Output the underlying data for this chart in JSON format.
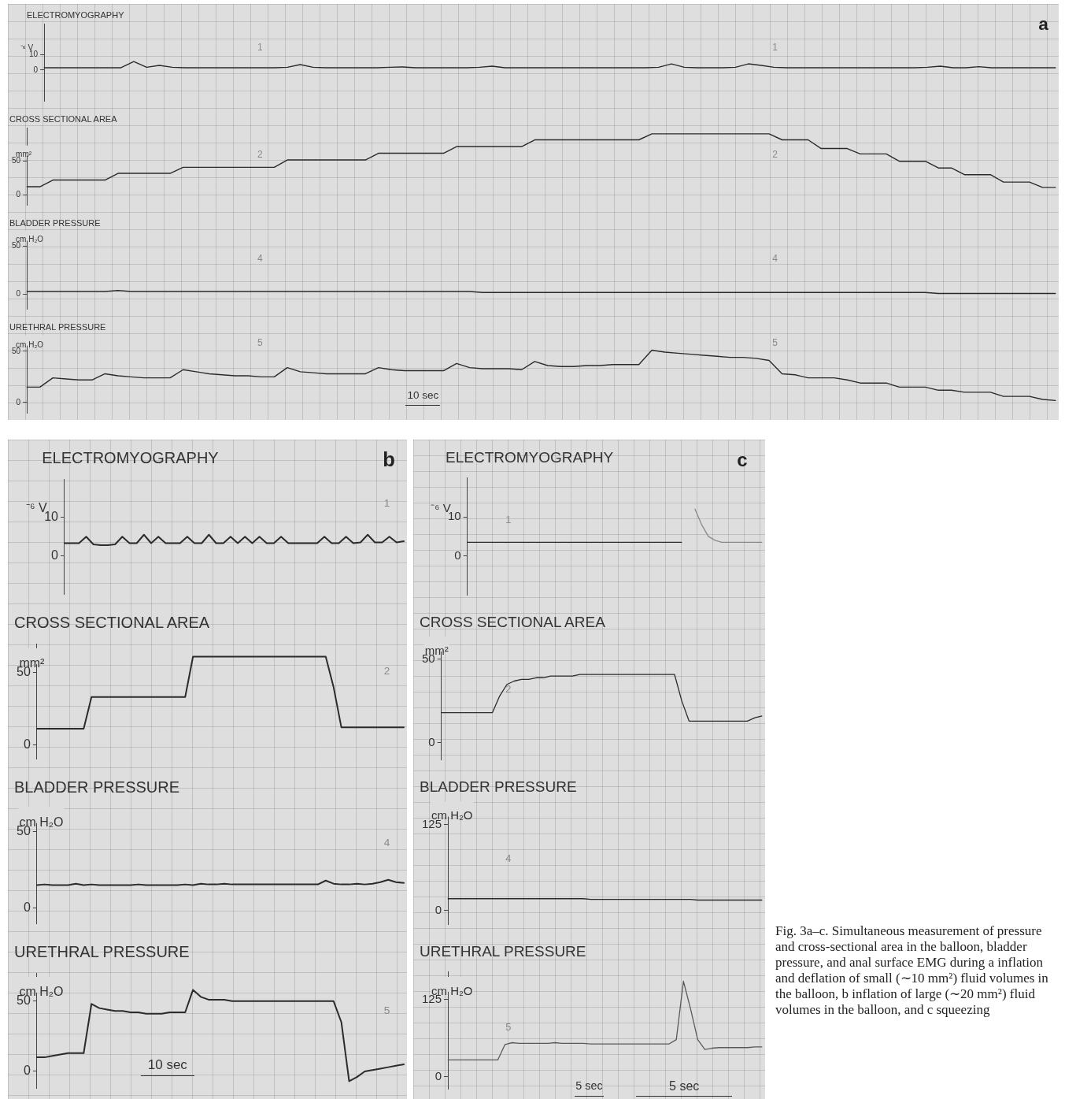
{
  "chart_data": [
    {
      "type": "line",
      "title": "ELECTROMYOGRAPHY",
      "categories": [
        null,
        null,
        null,
        null,
        null,
        null,
        null,
        null,
        null,
        null,
        null,
        null,
        null,
        null,
        null,
        null,
        null,
        null,
        null,
        null,
        null,
        null,
        null,
        null,
        null,
        null,
        null,
        null,
        null,
        null,
        null,
        null,
        null,
        null,
        null,
        null,
        null,
        null,
        null,
        null,
        null,
        null,
        null,
        null,
        null,
        null,
        null,
        null,
        null,
        null,
        null,
        null,
        null,
        null,
        null,
        null,
        null,
        null,
        null,
        null,
        null,
        null,
        null,
        null,
        null,
        null,
        null,
        null,
        null,
        null,
        null,
        null,
        null,
        null,
        null,
        null,
        null,
        null,
        null,
        null
      ],
      "values": [
        1.5,
        1.5,
        1.5,
        1.5,
        1.5,
        1.5,
        1.5,
        5.5,
        1.8,
        3,
        1.8,
        1.5,
        1.5,
        1.5,
        1.5,
        1.5,
        1.5,
        1.5,
        1.5,
        1.8,
        3.5,
        1.8,
        1.5,
        1.5,
        1.5,
        1.5,
        1.5,
        1.8,
        2,
        1.5,
        1.5,
        1.5,
        1.5,
        1.5,
        1.8,
        2.5,
        1.5,
        1.5,
        1.5,
        1.5,
        1.5,
        1.5,
        1.5,
        1.5,
        1.5,
        1.5,
        1.5,
        1.5,
        1.8,
        4,
        1.8,
        1.5,
        1.5,
        1.5,
        1.8,
        4,
        3,
        1.8,
        1.5,
        1.5,
        1.5,
        1.5,
        1.5,
        1.5,
        1.5,
        1.5,
        1.5,
        1.5,
        1.5,
        1.8,
        2.5,
        1.5,
        1.5,
        2.2,
        1.5,
        1.5,
        1.5,
        1.5,
        1.5,
        1.5
      ],
      "color": "#2b2b2b",
      "ylim": [
        -20,
        30
      ],
      "yticks": [
        0,
        10
      ],
      "ylabel": "⁻⁶ V",
      "tick_labels": "y",
      "annotations": [
        "a",
        "1",
        "1"
      ]
    },
    {
      "type": "line",
      "title": "CROSS SECTIONAL AREA",
      "ylabel": "mm²",
      "categories": [
        null,
        null,
        null,
        null,
        null,
        null,
        null,
        null,
        null,
        null,
        null,
        null,
        null,
        null,
        null,
        null,
        null,
        null,
        null,
        null,
        null,
        null,
        null,
        null,
        null,
        null,
        null,
        null,
        null,
        null,
        null,
        null,
        null,
        null,
        null,
        null,
        null,
        null,
        null,
        null,
        null,
        null,
        null,
        null,
        null,
        null,
        null,
        null,
        null,
        null,
        null,
        null,
        null,
        null,
        null,
        null,
        null,
        null,
        null,
        null,
        null,
        null,
        null,
        null,
        null,
        null,
        null,
        null,
        null,
        null,
        null,
        null,
        null,
        null,
        null,
        null,
        null,
        null,
        null,
        null
      ],
      "values": [
        12,
        12,
        22,
        22,
        22,
        22,
        22,
        32,
        32,
        32,
        32,
        32,
        41,
        41,
        41,
        41,
        41,
        41,
        41,
        41,
        52,
        52,
        52,
        52,
        52,
        52,
        52,
        62,
        62,
        62,
        62,
        62,
        62,
        72,
        72,
        72,
        72,
        72,
        72,
        82,
        82,
        82,
        82,
        82,
        82,
        82,
        82,
        82,
        91,
        91,
        91,
        91,
        91,
        91,
        91,
        91,
        91,
        91,
        82,
        82,
        82,
        69,
        69,
        69,
        61,
        61,
        61,
        50,
        50,
        50,
        40,
        40,
        30,
        30,
        30,
        19,
        19,
        19,
        11,
        11
      ],
      "color": "#2b2b2b",
      "ylim": [
        -15,
        100
      ],
      "yticks": [
        0,
        50
      ],
      "tick_labels": "y",
      "annotations": [
        "2",
        "2"
      ]
    },
    {
      "type": "line",
      "title": "BLADDER PRESSURE",
      "ylabel": "cm H₂O",
      "categories": [
        null,
        null,
        null,
        null,
        null,
        null,
        null,
        null,
        null,
        null,
        null,
        null,
        null,
        null,
        null,
        null,
        null,
        null,
        null,
        null,
        null,
        null,
        null,
        null,
        null,
        null,
        null,
        null,
        null,
        null,
        null,
        null,
        null,
        null,
        null,
        null,
        null,
        null,
        null,
        null,
        null,
        null,
        null,
        null,
        null,
        null,
        null,
        null,
        null,
        null,
        null,
        null,
        null,
        null,
        null,
        null,
        null,
        null,
        null,
        null,
        null,
        null,
        null,
        null,
        null,
        null,
        null,
        null,
        null,
        null,
        null,
        null,
        null,
        null,
        null,
        null,
        null,
        null,
        null,
        null
      ],
      "values": [
        3,
        3,
        3,
        3,
        3,
        3,
        3,
        4,
        3,
        3,
        3,
        3,
        3,
        3,
        3,
        3,
        3,
        3,
        3,
        3,
        3,
        3,
        3,
        3,
        3,
        3,
        3,
        3,
        3,
        3,
        3,
        3,
        3,
        3,
        3,
        2,
        2,
        2,
        2,
        2,
        2,
        2,
        2,
        2,
        2,
        2,
        2,
        2,
        2,
        2,
        2,
        2,
        2,
        2,
        2,
        2,
        2,
        2,
        2,
        2,
        2,
        2,
        2,
        2,
        2,
        2,
        2,
        2,
        2,
        2,
        1,
        1,
        1,
        1,
        1,
        1,
        1,
        1,
        1,
        1
      ],
      "color": "#2b2b2b",
      "ylim": [
        -15,
        65
      ],
      "yticks": [
        0,
        50
      ],
      "tick_labels": "y",
      "annotations": [
        "4",
        "4"
      ]
    },
    {
      "type": "line",
      "title": "URETHRAL PRESSURE",
      "ylabel": "cm H₂O",
      "categories": [
        null,
        null,
        null,
        null,
        null,
        null,
        null,
        null,
        null,
        null,
        null,
        null,
        null,
        null,
        null,
        null,
        null,
        null,
        null,
        null,
        null,
        null,
        null,
        null,
        null,
        null,
        null,
        null,
        null,
        null,
        null,
        null,
        null,
        null,
        null,
        null,
        null,
        null,
        null,
        null,
        null,
        null,
        null,
        null,
        null,
        null,
        null,
        null,
        null,
        null,
        null,
        null,
        null,
        null,
        null,
        null,
        null,
        null,
        null,
        null,
        null,
        null,
        null,
        null,
        null,
        null,
        null,
        null,
        null,
        null,
        null,
        null,
        null,
        null,
        null,
        null,
        null,
        null,
        null,
        null
      ],
      "values": [
        15,
        15,
        24,
        23,
        22,
        22,
        28,
        26,
        25,
        24,
        24,
        24,
        32,
        30,
        28,
        27,
        26,
        26,
        25,
        25,
        34,
        30,
        29,
        28,
        28,
        28,
        28,
        34,
        32,
        31,
        31,
        31,
        31,
        38,
        34,
        33,
        33,
        33,
        32,
        40,
        36,
        35,
        35,
        36,
        36,
        37,
        37,
        37,
        51,
        49,
        48,
        47,
        46,
        45,
        44,
        44,
        43,
        41,
        28,
        27,
        24,
        24,
        24,
        22,
        19,
        19,
        19,
        15,
        15,
        15,
        12,
        12,
        10,
        10,
        10,
        6,
        6,
        6,
        3,
        2
      ],
      "color": "#2b2b2b",
      "ylim": [
        -10,
        65
      ],
      "yticks": [
        0,
        50
      ],
      "tick_labels": "y",
      "annotations": [
        "5",
        "5",
        "10 sec"
      ]
    },
    {
      "type": "line",
      "title": "ELECTROMYOGRAPHY",
      "categories": [
        null,
        null,
        null,
        null,
        null,
        null,
        null,
        null,
        null,
        null,
        null,
        null,
        null,
        null,
        null,
        null,
        null,
        null,
        null,
        null,
        null,
        null,
        null,
        null,
        null,
        null,
        null,
        null,
        null,
        null,
        null,
        null,
        null,
        null,
        null,
        null,
        null,
        null,
        null,
        null,
        null,
        null,
        null,
        null,
        null,
        null,
        null,
        null
      ],
      "values": [
        3.3,
        3.3,
        3.3,
        5,
        3,
        2.8,
        2.8,
        3,
        5,
        3.3,
        3.3,
        5.5,
        3.3,
        5,
        3.3,
        3.3,
        3.3,
        5,
        3.3,
        3.3,
        5.5,
        3.3,
        3.3,
        5,
        3.3,
        5,
        3.3,
        5,
        3.3,
        3.3,
        5,
        3.3,
        3.3,
        3.3,
        3.3,
        3.3,
        5,
        3.3,
        3.3,
        5,
        3.3,
        3.5,
        5.5,
        3.5,
        3.5,
        5,
        3.5,
        3.8
      ],
      "color": "#2b2b2b",
      "ylim": [
        -10,
        20
      ],
      "yticks": [
        0,
        10
      ],
      "ylabel": "⁻⁶ V",
      "tick_labels": "y",
      "annotations": [
        "b",
        "1"
      ]
    },
    {
      "type": "line",
      "title": "CROSS SECTIONAL AREA",
      "ylabel": "mm²",
      "categories": [
        null,
        null,
        null,
        null,
        null,
        null,
        null,
        null,
        null,
        null,
        null,
        null,
        null,
        null,
        null,
        null,
        null,
        null,
        null,
        null,
        null,
        null,
        null,
        null,
        null,
        null,
        null,
        null,
        null,
        null,
        null,
        null,
        null,
        null,
        null,
        null,
        null,
        null,
        null,
        null,
        null,
        null,
        null,
        null,
        null,
        null,
        null,
        null
      ],
      "values": [
        11,
        11,
        11,
        11,
        11,
        11,
        11,
        33,
        33,
        33,
        33,
        33,
        33,
        33,
        33,
        33,
        33,
        33,
        33,
        33,
        61,
        61,
        61,
        61,
        61,
        61,
        61,
        61,
        61,
        61,
        61,
        61,
        61,
        61,
        61,
        61,
        61,
        61,
        40,
        12,
        12,
        12,
        12,
        12,
        12,
        12,
        12,
        12
      ],
      "color": "#2b2b2b",
      "ylim": [
        -10,
        70
      ],
      "yticks": [
        0,
        50
      ],
      "tick_labels": "y",
      "annotations": [
        "2"
      ]
    },
    {
      "type": "line",
      "title": "BLADDER PRESSURE",
      "ylabel": "cm H₂O",
      "categories": [
        null,
        null,
        null,
        null,
        null,
        null,
        null,
        null,
        null,
        null,
        null,
        null,
        null,
        null,
        null,
        null,
        null,
        null,
        null,
        null,
        null,
        null,
        null,
        null,
        null,
        null,
        null,
        null,
        null,
        null,
        null,
        null,
        null,
        null,
        null,
        null,
        null,
        null,
        null,
        null,
        null,
        null,
        null,
        null,
        null,
        null,
        null,
        null
      ],
      "values": [
        15,
        15.5,
        15,
        15,
        15,
        16,
        15,
        15.5,
        15,
        15,
        15,
        15,
        15,
        15.5,
        15,
        15,
        15,
        15,
        15,
        15.5,
        15,
        16,
        15.5,
        15.5,
        16,
        15.5,
        15.5,
        15.5,
        15.5,
        15.5,
        15.5,
        15.5,
        15.5,
        15.5,
        15.5,
        15.5,
        15.5,
        18,
        16,
        15.5,
        15.5,
        16,
        15.5,
        16,
        17,
        18.5,
        17,
        16.5
      ],
      "color": "#2b2b2b",
      "ylim": [
        -10,
        65
      ],
      "yticks": [
        0,
        50
      ],
      "tick_labels": "y",
      "annotations": [
        "4"
      ]
    },
    {
      "type": "line",
      "title": "URETHRAL PRESSURE",
      "ylabel": "cm H₂O",
      "categories": [
        null,
        null,
        null,
        null,
        null,
        null,
        null,
        null,
        null,
        null,
        null,
        null,
        null,
        null,
        null,
        null,
        null,
        null,
        null,
        null,
        null,
        null,
        null,
        null,
        null,
        null,
        null,
        null,
        null,
        null,
        null,
        null,
        null,
        null,
        null,
        null,
        null,
        null,
        null,
        null,
        null,
        null,
        null,
        null,
        null,
        null,
        null,
        null
      ],
      "values": [
        10,
        10,
        11,
        12,
        13,
        13,
        13,
        48,
        45,
        44,
        43,
        43,
        42,
        42,
        41,
        41,
        41,
        42,
        42,
        42,
        58,
        53,
        51,
        51,
        51,
        50,
        50,
        50,
        50,
        50,
        50,
        50,
        50,
        50,
        50,
        50,
        50,
        50,
        50,
        35,
        -7,
        -4,
        0,
        1,
        2,
        3,
        4,
        5
      ],
      "color": "#2b2b2b",
      "ylim": [
        -12,
        70
      ],
      "yticks": [
        0,
        50
      ],
      "tick_labels": "y",
      "annotations": [
        "5",
        "10 sec"
      ]
    },
    {
      "type": "line",
      "title": "ELECTROMYOGRAPHY",
      "categories": [
        null,
        null,
        null,
        null,
        null,
        null,
        null,
        null,
        null,
        null,
        null,
        null,
        null,
        null,
        null,
        null,
        null,
        null,
        null,
        null,
        null,
        null,
        null,
        null,
        null,
        null,
        null,
        null,
        null,
        null,
        null,
        null,
        null,
        null,
        null,
        null,
        null,
        null,
        null,
        null,
        null,
        null,
        null,
        null,
        null
      ],
      "series": [
        {
          "color": "#2b2b2b",
          "values": [
            3.5,
            3.5,
            3.5,
            3.5,
            3.5,
            3.5,
            3.5,
            3.5,
            3.5,
            3.5,
            3.5,
            3.5,
            3.5,
            3.5,
            3.5,
            3.5,
            3.5,
            3.5,
            3.5,
            3.5,
            3.5,
            3.5,
            3.5,
            3.5,
            3.5,
            3.5,
            3.5,
            3.5,
            3.5,
            3.5,
            3.5,
            3.5,
            3.5,
            null,
            null,
            null,
            null,
            null,
            null,
            null,
            null,
            null,
            null,
            null,
            null
          ]
        },
        {
          "color": "#8a8a8a",
          "values": [
            null,
            null,
            null,
            null,
            null,
            null,
            null,
            null,
            null,
            null,
            null,
            null,
            null,
            null,
            null,
            null,
            null,
            null,
            null,
            null,
            null,
            null,
            null,
            null,
            null,
            null,
            null,
            null,
            null,
            null,
            null,
            null,
            null,
            null,
            12,
            8,
            5,
            4,
            3.5,
            3.5,
            3.5,
            3.5,
            3.5,
            3.5,
            3.5
          ]
        }
      ],
      "ylim": [
        -10,
        20
      ],
      "yticks": [
        0,
        10
      ],
      "ylabel": "⁻⁶ V",
      "tick_labels": "y",
      "annotations": [
        "c",
        "1"
      ]
    },
    {
      "type": "line",
      "title": "CROSS SECTIONAL AREA",
      "ylabel": "mm²",
      "categories": [
        null,
        null,
        null,
        null,
        null,
        null,
        null,
        null,
        null,
        null,
        null,
        null,
        null,
        null,
        null,
        null,
        null,
        null,
        null,
        null,
        null,
        null,
        null,
        null,
        null,
        null,
        null,
        null,
        null,
        null,
        null,
        null,
        null,
        null,
        null,
        null,
        null,
        null,
        null,
        null,
        null,
        null,
        null,
        null,
        null
      ],
      "values": [
        18,
        18,
        18,
        18,
        18,
        18,
        18,
        18,
        28,
        35,
        37,
        38,
        38,
        39,
        39,
        40,
        40,
        40,
        40,
        41,
        41,
        41,
        41,
        41,
        41,
        41,
        41,
        41,
        41,
        41,
        41,
        41,
        41,
        25,
        13,
        13,
        13,
        13,
        13,
        13,
        13,
        13,
        13,
        15,
        16
      ],
      "color": "#2b2b2b",
      "ylim": [
        -10,
        60
      ],
      "yticks": [
        0,
        50
      ],
      "tick_labels": "y",
      "annotations": [
        "2"
      ]
    },
    {
      "type": "line",
      "title": "BLADDER PRESSURE",
      "ylabel": "cm H₂O",
      "categories": [
        null,
        null,
        null,
        null,
        null,
        null,
        null,
        null,
        null,
        null,
        null,
        null,
        null,
        null,
        null,
        null,
        null,
        null,
        null,
        null,
        null,
        null,
        null,
        null,
        null,
        null,
        null,
        null,
        null,
        null,
        null,
        null,
        null,
        null,
        null,
        null,
        null,
        null,
        null,
        null,
        null,
        null,
        null,
        null,
        null
      ],
      "values": [
        17,
        17,
        17,
        17,
        17,
        17,
        17,
        17,
        17,
        17,
        17,
        17,
        17,
        17,
        17,
        17,
        17,
        17,
        17,
        17,
        16,
        16,
        16,
        16,
        16,
        16,
        16,
        16,
        16,
        16,
        16,
        16,
        16,
        16,
        16,
        15,
        15,
        15,
        15,
        15,
        15,
        15,
        15,
        15,
        15
      ],
      "color": "#2b2b2b",
      "ylim": [
        -20,
        150
      ],
      "yticks": [
        0,
        125
      ],
      "tick_labels": "y",
      "annotations": [
        "4"
      ]
    },
    {
      "type": "line",
      "title": "URETHRAL PRESSURE",
      "ylabel": "cm H₂O",
      "categories": [
        null,
        null,
        null,
        null,
        null,
        null,
        null,
        null,
        null,
        null,
        null,
        null,
        null,
        null,
        null,
        null,
        null,
        null,
        null,
        null,
        null,
        null,
        null,
        null,
        null,
        null,
        null,
        null,
        null,
        null,
        null,
        null,
        null,
        null,
        null,
        null,
        null,
        null,
        null,
        null,
        null,
        null,
        null,
        null,
        null
      ],
      "values": [
        27,
        27,
        27,
        27,
        27,
        27,
        27,
        27,
        52,
        55,
        54,
        54,
        54,
        54,
        54,
        55,
        54,
        54,
        54,
        54,
        53,
        53,
        53,
        53,
        53,
        53,
        53,
        53,
        53,
        53,
        53,
        53,
        60,
        155,
        110,
        60,
        44,
        46,
        47,
        47,
        47,
        47,
        47,
        48,
        48
      ],
      "color": "#5a5a5a",
      "ylim": [
        -20,
        170
      ],
      "yticks": [
        0,
        125
      ],
      "tick_labels": "y",
      "annotations": [
        "5",
        "5 sec",
        "5 sec",
        "Fig. 3a–c. Simultaneous measurement of pressure and cross-sectional area in the balloon, bladder pressure, and anal surface EMG during a inflation and deflation of small (∼10 mm²) fluid volumes in the balloon, b inflation of large (∼20 mm²) fluid volumes in the balloon, and c squeezing"
      ]
    }
  ]
}
